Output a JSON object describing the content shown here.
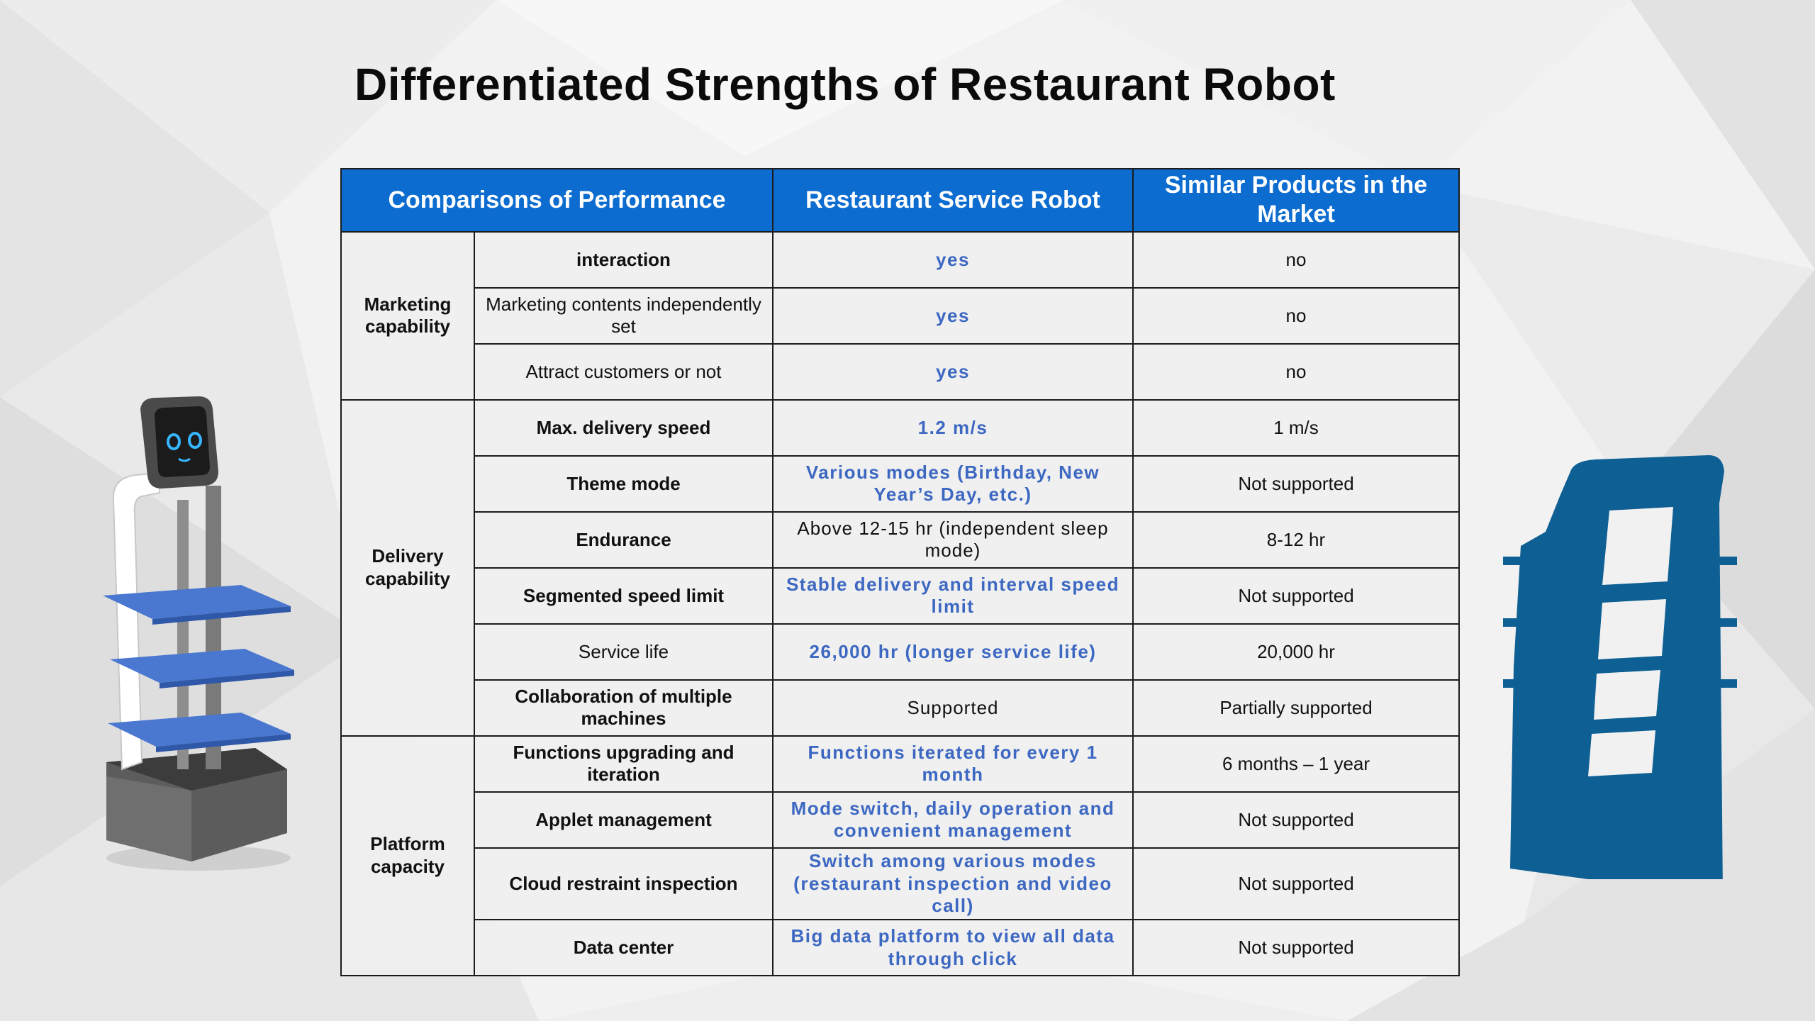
{
  "slide": {
    "title": "Differentiated Strengths of Restaurant Robot",
    "colors": {
      "header_bg": "#0c6ccf",
      "header_text": "#ffffff",
      "highlight_text": "#3d68c2",
      "robot_shelf": "#4a78d0",
      "silhouette": "#0e5f93"
    },
    "images": {
      "left": "restaurant-service-robot-photo",
      "right": "robot-silhouette-icon"
    }
  },
  "table": {
    "headers": [
      "Comparisons of Performance",
      "Restaurant Service Robot",
      "Similar Products in the Market"
    ],
    "groups": [
      {
        "category": "Marketing capability",
        "rows": [
          {
            "feature": "interaction",
            "feature_bold": true,
            "robot": "yes",
            "robot_highlight": true,
            "market": "no"
          },
          {
            "feature": "Marketing contents independently set",
            "feature_bold": false,
            "robot": "yes",
            "robot_highlight": true,
            "market": "no"
          },
          {
            "feature": "Attract customers or not",
            "feature_bold": false,
            "robot": "yes",
            "robot_highlight": true,
            "market": "no"
          }
        ]
      },
      {
        "category": "Delivery capability",
        "rows": [
          {
            "feature": "Max. delivery speed",
            "feature_bold": true,
            "robot": "1.2 m/s",
            "robot_highlight": true,
            "market": "1 m/s"
          },
          {
            "feature": "Theme mode",
            "feature_bold": true,
            "robot": "Various modes (Birthday, New Year’s Day, etc.)",
            "robot_highlight": true,
            "market": "Not supported"
          },
          {
            "feature": "Endurance",
            "feature_bold": true,
            "robot": "Above 12-15 hr (independent sleep mode)",
            "robot_highlight": false,
            "market": "8-12 hr"
          },
          {
            "feature": "Segmented speed limit",
            "feature_bold": true,
            "robot": "Stable delivery and interval speed limit",
            "robot_highlight": true,
            "market": "Not supported"
          },
          {
            "feature": "Service life",
            "feature_bold": false,
            "robot": "26,000 hr (longer service life)",
            "robot_highlight": true,
            "market": "20,000 hr"
          },
          {
            "feature": "Collaboration of multiple machines",
            "feature_bold": true,
            "robot": "Supported",
            "robot_highlight": false,
            "market": "Partially supported"
          }
        ]
      },
      {
        "category": "Platform capacity",
        "rows": [
          {
            "feature": "Functions upgrading and iteration",
            "feature_bold": true,
            "robot": "Functions iterated for every 1 month",
            "robot_highlight": true,
            "market": "6 months – 1 year"
          },
          {
            "feature": "Applet management",
            "feature_bold": true,
            "robot": "Mode switch, daily operation and convenient management",
            "robot_highlight": true,
            "market": "Not supported"
          },
          {
            "feature": "Cloud restraint inspection",
            "feature_bold": true,
            "robot": "Switch among various modes (restaurant inspection and video call)",
            "robot_highlight": true,
            "market": "Not supported",
            "tall": true
          },
          {
            "feature": "Data center",
            "feature_bold": true,
            "robot": "Big data platform to view all data through click",
            "robot_highlight": true,
            "market": "Not supported"
          }
        ]
      }
    ]
  }
}
